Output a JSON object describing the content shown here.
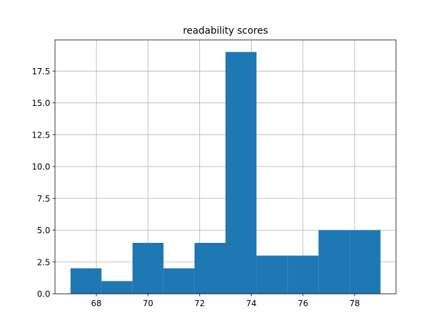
{
  "chart_data": {
    "type": "bar",
    "subtype": "histogram",
    "title": "readability scores",
    "xlabel": "",
    "ylabel": "",
    "xlim": [
      66.4,
      79.6
    ],
    "ylim": [
      0,
      19.95
    ],
    "grid": true,
    "bar_color": "#1f77b4",
    "bins": [
      {
        "start": 67.0,
        "end": 68.2,
        "count": 2
      },
      {
        "start": 68.2,
        "end": 69.4,
        "count": 1
      },
      {
        "start": 69.4,
        "end": 70.6,
        "count": 4
      },
      {
        "start": 70.6,
        "end": 71.8,
        "count": 2
      },
      {
        "start": 71.8,
        "end": 73.0,
        "count": 4
      },
      {
        "start": 73.0,
        "end": 74.2,
        "count": 19
      },
      {
        "start": 74.2,
        "end": 75.4,
        "count": 3
      },
      {
        "start": 75.4,
        "end": 76.6,
        "count": 3
      },
      {
        "start": 76.6,
        "end": 77.8,
        "count": 5
      },
      {
        "start": 77.8,
        "end": 79.0,
        "count": 5
      }
    ],
    "x_ticks": [
      {
        "value": 68,
        "label": "68"
      },
      {
        "value": 70,
        "label": "70"
      },
      {
        "value": 72,
        "label": "72"
      },
      {
        "value": 74,
        "label": "74"
      },
      {
        "value": 76,
        "label": "76"
      },
      {
        "value": 78,
        "label": "78"
      }
    ],
    "y_ticks": [
      {
        "value": 0,
        "label": "0.0"
      },
      {
        "value": 2.5,
        "label": "2.5"
      },
      {
        "value": 5,
        "label": "5.0"
      },
      {
        "value": 7.5,
        "label": "7.5"
      },
      {
        "value": 10,
        "label": "10.0"
      },
      {
        "value": 12.5,
        "label": "12.5"
      },
      {
        "value": 15,
        "label": "15.0"
      },
      {
        "value": 17.5,
        "label": "17.5"
      }
    ]
  }
}
